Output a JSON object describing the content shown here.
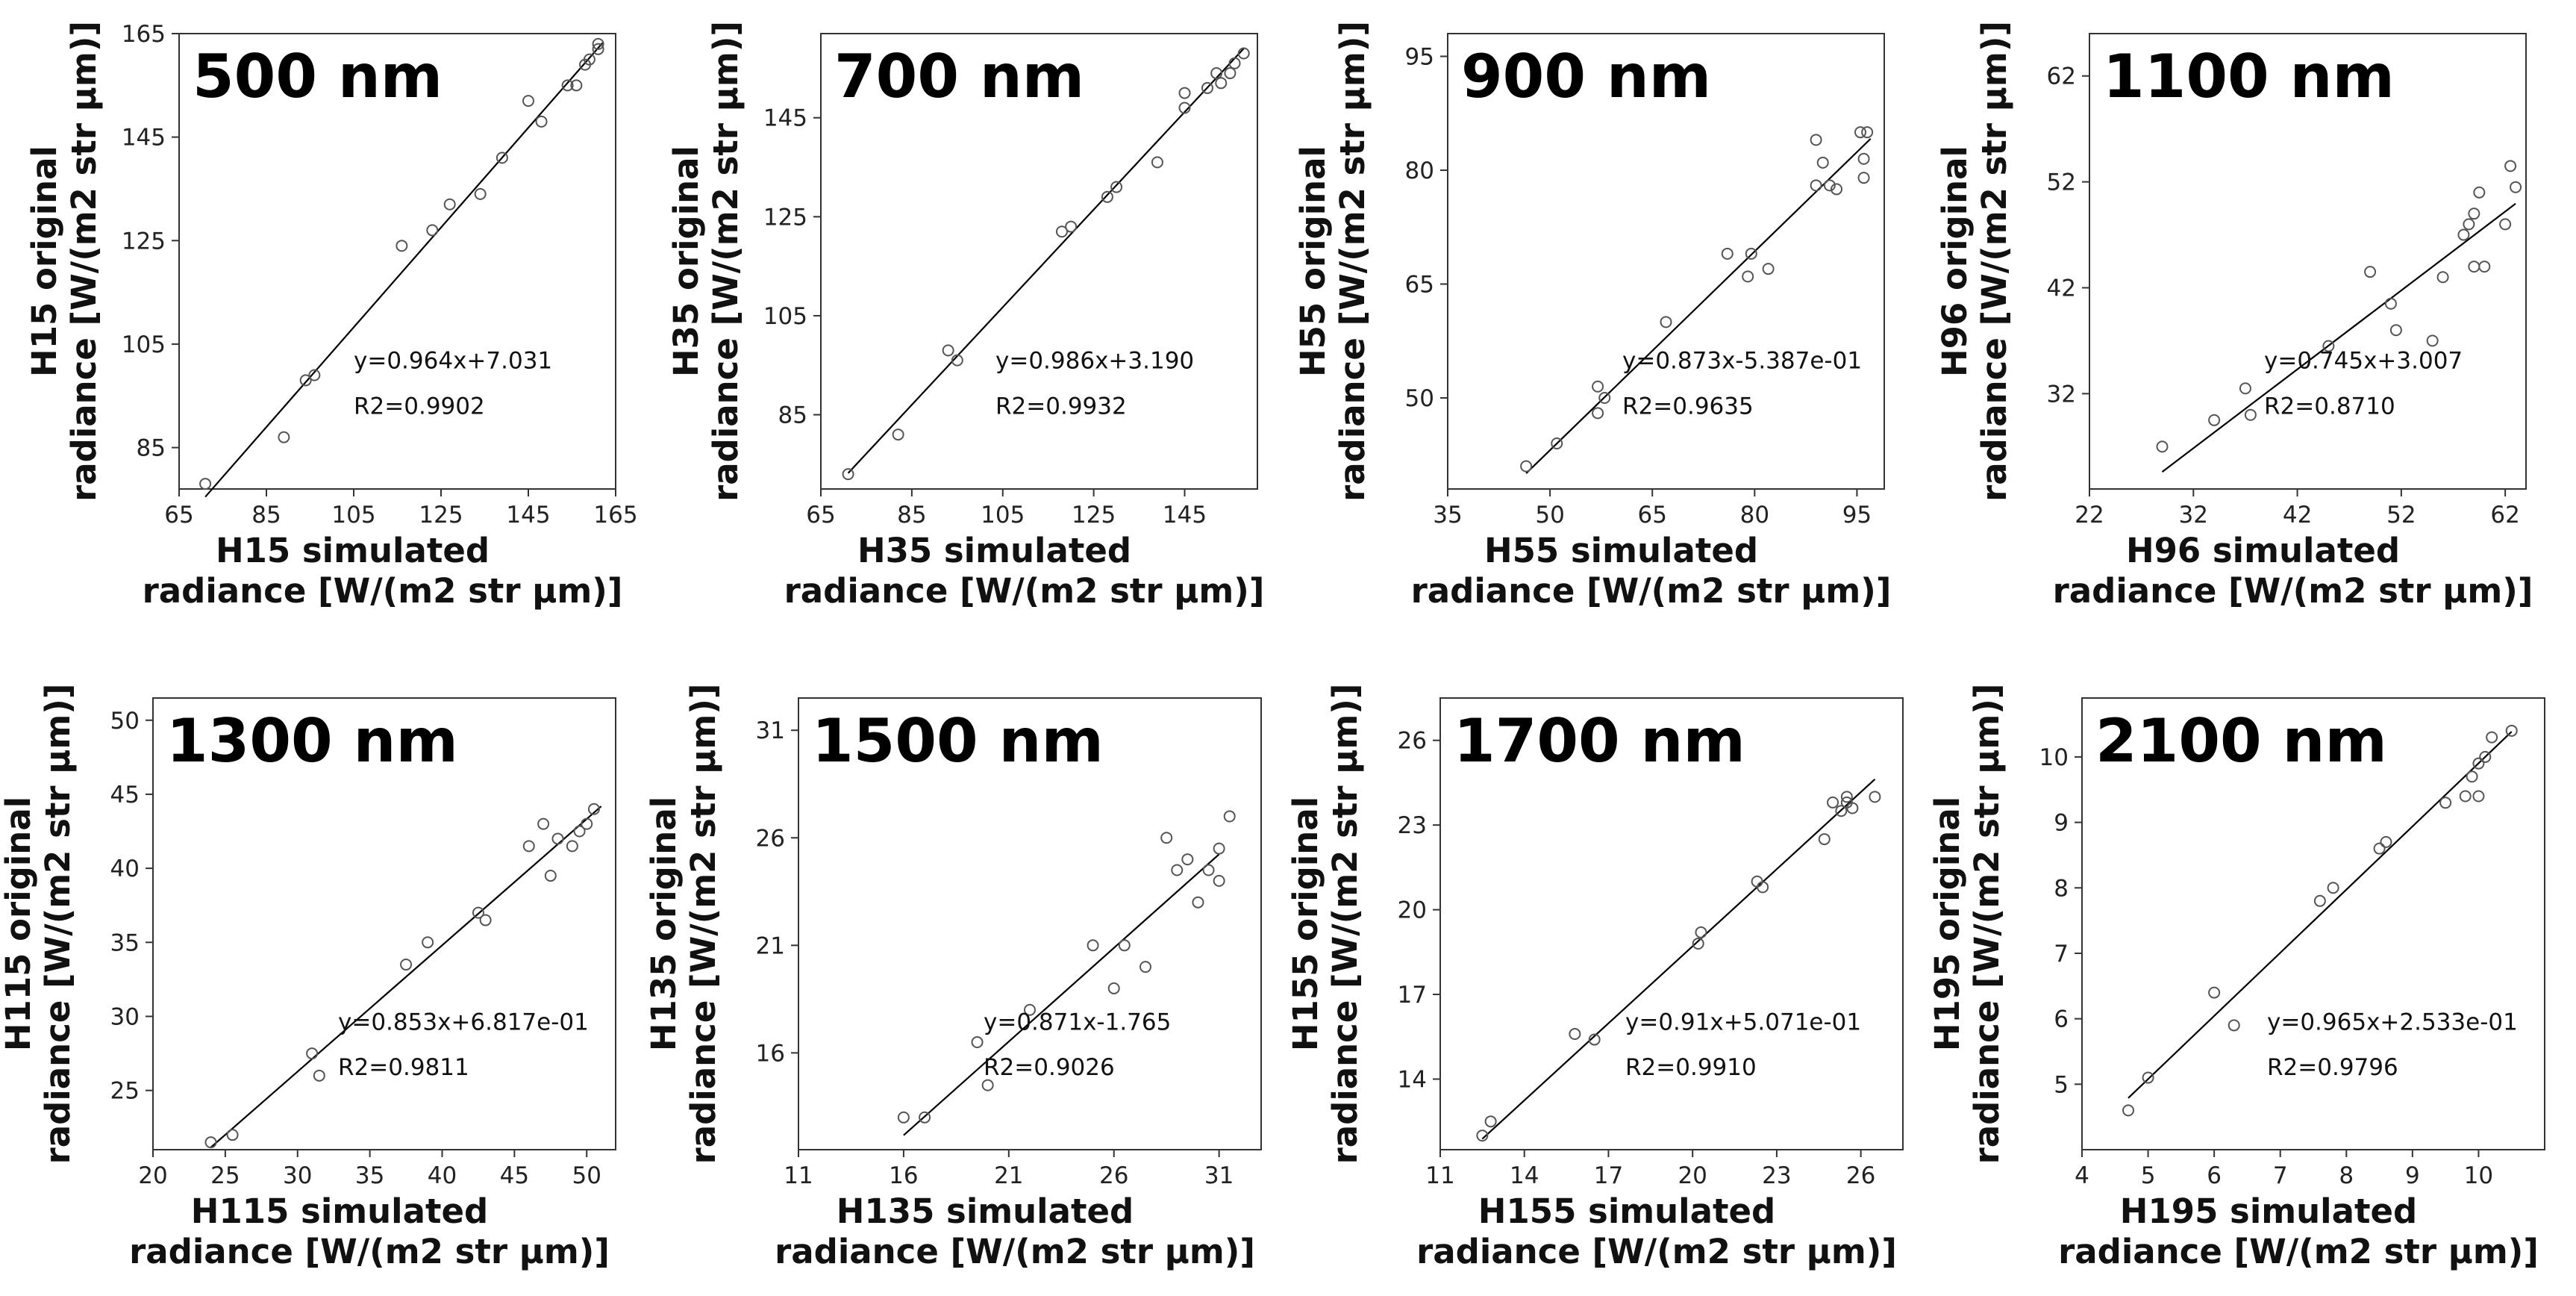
{
  "chart_data": [
    {
      "type": "scatter",
      "wavelength": "500 nm",
      "xlabel": [
        "H15 simulated",
        "radiance [W/(m2 str µm)]"
      ],
      "ylabel": [
        "H15 original",
        "radiance [W/(m2 str µm)]"
      ],
      "xlim": [
        65,
        165
      ],
      "ylim": [
        77,
        165
      ],
      "xticks": [
        65,
        85,
        105,
        125,
        145,
        165
      ],
      "yticks": [
        85,
        105,
        125,
        145,
        165
      ],
      "equation": "y=0.964x+7.031",
      "r2": "R2=0.9902",
      "slope": 0.964,
      "intercept": 7.031,
      "fit_x": [
        71,
        162
      ],
      "x": [
        71,
        89,
        94,
        96,
        116,
        123,
        127,
        134,
        139,
        145,
        148,
        154,
        156,
        158,
        159,
        161,
        161
      ],
      "y": [
        78,
        87,
        98,
        99,
        124,
        127,
        132,
        134,
        141,
        152,
        148,
        155,
        155,
        159,
        160,
        162,
        163
      ]
    },
    {
      "type": "scatter",
      "wavelength": "700 nm",
      "xlabel": [
        "H35 simulated",
        "radiance [W/(m2 str µm)]"
      ],
      "ylabel": [
        "H35 original",
        "radiance [W/(m2 str µm)]"
      ],
      "xlim": [
        65,
        161
      ],
      "ylim": [
        70,
        162
      ],
      "xticks": [
        65,
        85,
        105,
        125,
        145
      ],
      "yticks": [
        85,
        105,
        125,
        145
      ],
      "equation": "y=0.986x+3.190",
      "r2": "R2=0.9932",
      "slope": 0.986,
      "intercept": 3.19,
      "fit_x": [
        71,
        158
      ],
      "x": [
        71,
        82,
        93,
        95,
        118,
        120,
        128,
        130,
        139,
        145,
        145,
        150,
        152,
        153,
        155,
        156,
        158
      ],
      "y": [
        73,
        81,
        98,
        96,
        122,
        123,
        129,
        131,
        136,
        147,
        150,
        151,
        154,
        152,
        154,
        156,
        158
      ]
    },
    {
      "type": "scatter",
      "wavelength": "900 nm",
      "xlabel": [
        "H55 simulated",
        "radiance [W/(m2 str µm)]"
      ],
      "ylabel": [
        "H55 original",
        "radiance [W/(m2 str µm)]"
      ],
      "xlim": [
        35,
        99
      ],
      "ylim": [
        38,
        98
      ],
      "xticks": [
        35,
        50,
        65,
        80,
        95
      ],
      "yticks": [
        50,
        65,
        80,
        95
      ],
      "equation": "y=0.873x-5.387e-01",
      "r2": "R2=0.9635",
      "slope": 0.873,
      "intercept": -0.5387,
      "fit_x": [
        46.5,
        97
      ],
      "x": [
        46.5,
        51,
        57,
        57,
        58,
        67,
        76,
        79,
        79.5,
        82,
        89,
        89,
        90,
        91,
        92,
        95.5,
        96,
        96,
        96.5
      ],
      "y": [
        41,
        44,
        48,
        51.5,
        50,
        60,
        69,
        66,
        69,
        67,
        84,
        78,
        81,
        78,
        77.5,
        85,
        79,
        81.5,
        85
      ]
    },
    {
      "type": "scatter",
      "wavelength": "1100 nm",
      "xlabel": [
        "H96 simulated",
        "radiance [W/(m2 str µm)]"
      ],
      "ylabel": [
        "H96 original",
        "radiance [W/(m2 str µm)]"
      ],
      "xlim": [
        22,
        64
      ],
      "ylim": [
        23,
        66
      ],
      "xticks": [
        22,
        32,
        42,
        52,
        62
      ],
      "yticks": [
        32,
        42,
        52,
        62
      ],
      "equation": "y=0.745x+3.007",
      "r2": "R2=0.8710",
      "slope": 0.745,
      "intercept": 3.007,
      "fit_x": [
        29,
        63
      ],
      "x": [
        29,
        34,
        37,
        37.5,
        45,
        49,
        51,
        51.5,
        55,
        56,
        58,
        58.5,
        59,
        59.5,
        59,
        60,
        62,
        62.5,
        63
      ],
      "y": [
        27,
        29.5,
        32.5,
        30,
        36.5,
        43.5,
        40.5,
        38,
        37,
        43,
        47,
        48,
        49,
        51,
        44,
        44,
        48,
        53.5,
        51.5
      ]
    },
    {
      "type": "scatter",
      "wavelength": "1300 nm",
      "xlabel": [
        "H115 simulated",
        "radiance [W/(m2 str µm)]"
      ],
      "ylabel": [
        "H115 original",
        "radiance [W/(m2 str µm)]"
      ],
      "xlim": [
        20,
        52
      ],
      "ylim": [
        21,
        51.5
      ],
      "xticks": [
        20,
        25,
        30,
        35,
        40,
        45,
        50
      ],
      "yticks": [
        25,
        30,
        35,
        40,
        45,
        50
      ],
      "equation": "y=0.853x+6.817e-01",
      "r2": "R2=0.9811",
      "slope": 0.853,
      "intercept": 0.6817,
      "fit_x": [
        24,
        51
      ],
      "x": [
        24,
        25.5,
        31,
        31.5,
        37.5,
        39,
        42.5,
        43,
        46,
        47,
        47.5,
        48,
        49,
        49.5,
        50,
        50.5
      ],
      "y": [
        21.5,
        22,
        27.5,
        26,
        33.5,
        35,
        37,
        36.5,
        41.5,
        43,
        39.5,
        42,
        41.5,
        42.5,
        43,
        44
      ]
    },
    {
      "type": "scatter",
      "wavelength": "1500 nm",
      "xlabel": [
        "H135 simulated",
        "radiance [W/(m2 str µm)]"
      ],
      "ylabel": [
        "H135 original",
        "radiance [W/(m2 str µm)]"
      ],
      "xlim": [
        11,
        33
      ],
      "ylim": [
        11.5,
        32.5
      ],
      "xticks": [
        11,
        16,
        21,
        26,
        31
      ],
      "yticks": [
        16,
        21,
        26,
        31
      ],
      "equation": "y=0.871x-1.765",
      "r2": "R2=0.9026",
      "slope": 0.871,
      "intercept": -1.765,
      "fit_x": [
        16,
        31
      ],
      "x": [
        16,
        17,
        19.5,
        20,
        22,
        25,
        26,
        26.5,
        27.5,
        28.5,
        29,
        29.5,
        30,
        30.5,
        31,
        31,
        31.5
      ],
      "y": [
        13,
        13,
        16.5,
        14.5,
        18,
        21,
        19,
        21,
        20,
        26,
        24.5,
        25,
        23,
        24.5,
        24,
        25.5,
        27
      ]
    },
    {
      "type": "scatter",
      "wavelength": "1700 nm",
      "xlabel": [
        "H155 simulated",
        "radiance [W/(m2 str µm)]"
      ],
      "ylabel": [
        "H155 original",
        "radiance [W/(m2 str µm)]"
      ],
      "xlim": [
        11,
        27.5
      ],
      "ylim": [
        11.5,
        27.5
      ],
      "xticks": [
        11,
        14,
        17,
        20,
        23,
        26
      ],
      "yticks": [
        14,
        17,
        20,
        23,
        26
      ],
      "equation": "y=0.91x+5.071e-01",
      "r2": "R2=0.9910",
      "slope": 0.91,
      "intercept": 0.5071,
      "fit_x": [
        12.5,
        26.5
      ],
      "x": [
        12.5,
        12.8,
        15.8,
        16.5,
        20.2,
        20.3,
        22.3,
        22.5,
        24.7,
        25,
        25.3,
        25.5,
        25.5,
        25.7,
        26.5
      ],
      "y": [
        12,
        12.5,
        15.6,
        15.4,
        18.8,
        19.2,
        21,
        20.8,
        22.5,
        23.8,
        23.5,
        23.8,
        24,
        23.6,
        24
      ]
    },
    {
      "type": "scatter",
      "wavelength": "2100 nm",
      "xlabel": [
        "H195 simulated",
        "radiance [W/(m2 str µm)]"
      ],
      "ylabel": [
        "H195 original",
        "radiance [W/(m2 str µm)]"
      ],
      "xlim": [
        4,
        11
      ],
      "ylim": [
        4,
        10.9
      ],
      "xticks": [
        4,
        5,
        6,
        7,
        8,
        9,
        10
      ],
      "yticks": [
        5,
        6,
        7,
        8,
        9,
        10
      ],
      "equation": "y=0.965x+2.533e-01",
      "r2": "R2=0.9796",
      "slope": 0.965,
      "intercept": 0.2533,
      "fit_x": [
        4.7,
        10.5
      ],
      "x": [
        4.7,
        5,
        6,
        6.3,
        7.6,
        7.8,
        8.5,
        8.6,
        9.5,
        9.8,
        9.9,
        10,
        10,
        10.1,
        10.2,
        10.5
      ],
      "y": [
        4.6,
        5.1,
        6.4,
        5.9,
        7.8,
        8,
        8.6,
        8.7,
        9.3,
        9.4,
        9.7,
        9.9,
        9.4,
        10,
        10.3,
        10.4
      ]
    }
  ]
}
